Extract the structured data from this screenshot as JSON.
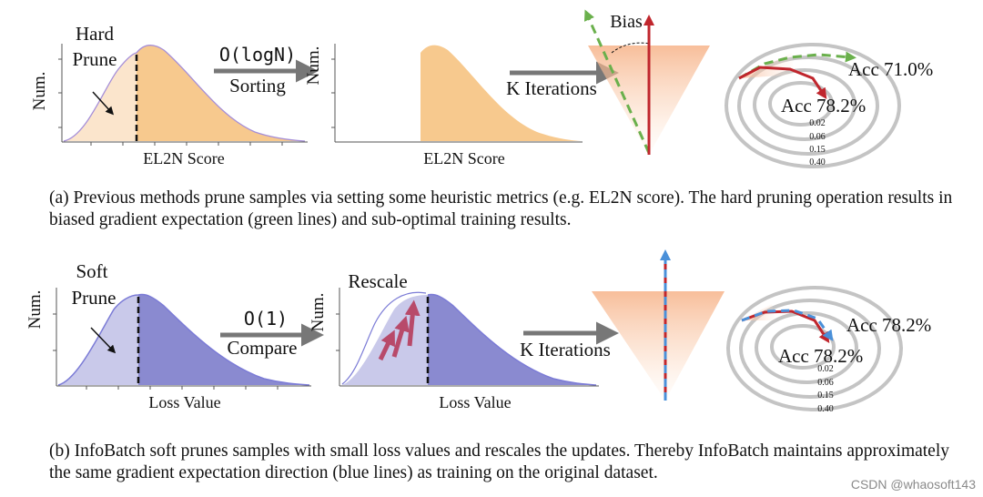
{
  "panel_a": {
    "hist1": {
      "ylabel": "Num.",
      "xlabel": "EL2N Score",
      "label_line1": "Hard",
      "label_line2": "Prune"
    },
    "op": {
      "complexity": "O(logN)",
      "action": "Sorting"
    },
    "hist2": {
      "ylabel": "Num.",
      "xlabel": "EL2N Score"
    },
    "iter_label": "K Iterations",
    "bias_label": "Bias",
    "contour": {
      "acc_green": "Acc 71.0%",
      "acc_red": "Acc 78.2%",
      "levels": [
        "0.02",
        "0.06",
        "0.15",
        "0.40"
      ]
    },
    "caption": "(a) Previous methods prune samples via setting some heuristic metrics (e.g. EL2N score). The hard pruning operation results in biased gradient expectation (green lines) and sub-optimal training results."
  },
  "panel_b": {
    "hist1": {
      "ylabel": "Num.",
      "xlabel": "Loss Value",
      "label_line1": "Soft",
      "label_line2": "Prune"
    },
    "op": {
      "complexity": "O(1)",
      "action": "Compare"
    },
    "hist2": {
      "ylabel": "Num.",
      "xlabel": "Loss Value",
      "label": "Rescale"
    },
    "iter_label": "K Iterations",
    "contour": {
      "acc_blue": "Acc 78.2%",
      "acc_red": "Acc 78.2%",
      "levels": [
        "0.02",
        "0.06",
        "0.15",
        "0.40"
      ]
    },
    "caption": "(b) InfoBatch soft prunes samples with small loss values and rescales the updates. Thereby InfoBatch maintains approximately the same gradient expectation direction (blue lines) as training on the original dataset."
  },
  "watermark": "CSDN @whaosoft143",
  "colors": {
    "orange_fill": "#f7c98e",
    "orange_light": "#fbe5cc",
    "purple_fill": "#8a8ad0",
    "purple_light": "#c9c9ea",
    "purple_line": "#7b7bd6",
    "green": "#6ab04c",
    "red": "#c0262d",
    "blue": "#4a90d9",
    "rescale_arrow": "#b84a6a",
    "gray_arrow": "#777777"
  }
}
